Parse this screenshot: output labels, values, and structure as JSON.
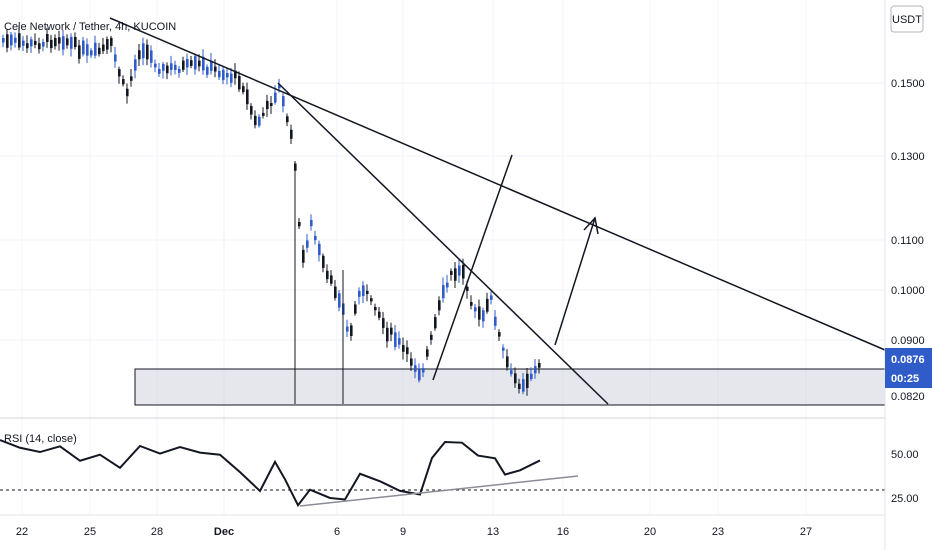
{
  "header": {
    "symbol": "Cele Network / Tether, 4h, KUCOIN"
  },
  "price_axis": {
    "currency": "USDT",
    "ticks": [
      "0.1500",
      "0.1300",
      "0.1100",
      "0.1000",
      "0.0900",
      "0.0820"
    ],
    "last_price": "0.0876",
    "countdown": "00:25",
    "accent": "#2f5cc9"
  },
  "rsi": {
    "label": "RSI (14, close)",
    "ticks": [
      "50.00",
      "25.00"
    ],
    "reference_level": 30
  },
  "date_axis": {
    "labels": [
      "22",
      "25",
      "28",
      "Dec",
      "6",
      "9",
      "13",
      "16",
      "20",
      "23",
      "27"
    ]
  },
  "chart_data": {
    "type": "candlestick",
    "title": "Cele Network / Tether, 4h, KUCOIN",
    "ylabel": "USDT",
    "ylim": [
      0.078,
      0.185
    ],
    "x_labels": [
      "22",
      "25",
      "28",
      "Dec",
      "6",
      "9",
      "13",
      "16",
      "20",
      "23",
      "27"
    ],
    "last_price": 0.0876,
    "support_zone": [
      0.0815,
      0.0865
    ],
    "indicator": {
      "name": "RSI (14, close)",
      "ylim": [
        10,
        70
      ],
      "reference_line": 30
    },
    "colors": {
      "up": "#2f5cc9",
      "down": "#131722",
      "zone": "#d1d4dc"
    }
  }
}
